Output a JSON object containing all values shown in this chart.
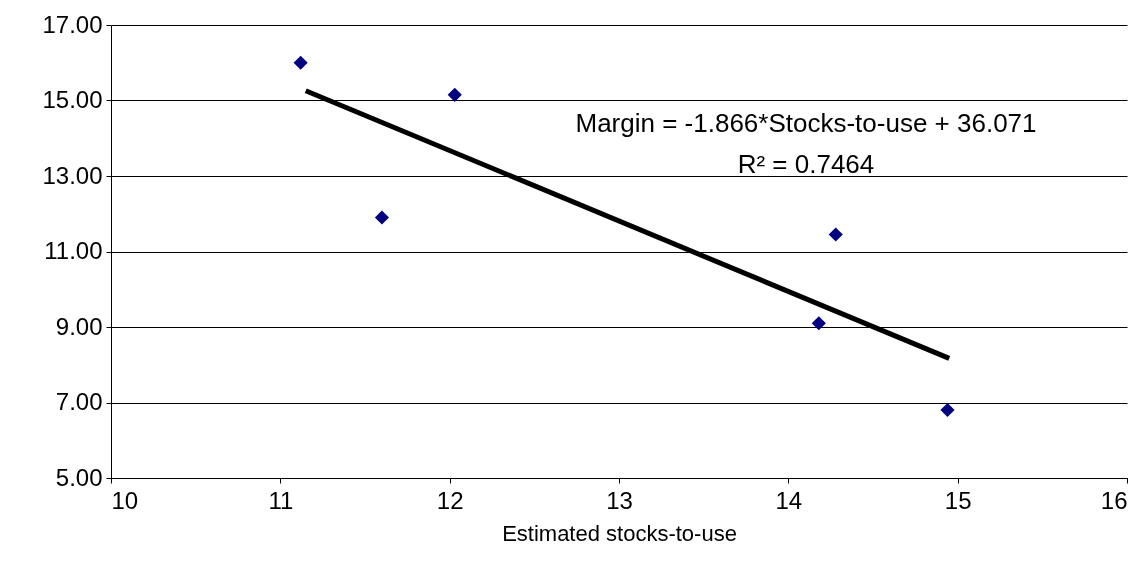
{
  "chart_data": {
    "type": "scatter",
    "xlabel": "Estimated stocks-to-use",
    "series": [
      {
        "marker": "diamond",
        "color": "#000080",
        "x": [
          11.12,
          11.6,
          12.03,
          14.18,
          14.28,
          14.94
        ],
        "values": [
          16.0,
          11.9,
          15.15,
          9.1,
          11.45,
          6.8
        ]
      },
      {
        "type": "line",
        "marker": "none",
        "color": "#000000",
        "x": [
          11.15,
          14.95
        ],
        "values": [
          15.26,
          8.17
        ]
      }
    ],
    "annotations": [
      "Margin = -1.866*Stocks-to-use + 36.071",
      "R² = 0.7464"
    ],
    "xlim": [
      10,
      16
    ],
    "xticks": [
      10,
      11,
      12,
      13,
      14,
      15,
      16
    ],
    "ylim": [
      5,
      17
    ],
    "yticks": [
      {
        "value": 5,
        "label": "5.00"
      },
      {
        "value": 7,
        "label": "7.00"
      },
      {
        "value": 9,
        "label": "9.00"
      },
      {
        "value": 11,
        "label": "11.00"
      },
      {
        "value": 13,
        "label": "13.00"
      },
      {
        "value": 15,
        "label": "15.00"
      },
      {
        "value": 17,
        "label": "17.00"
      }
    ],
    "grid": "y"
  }
}
